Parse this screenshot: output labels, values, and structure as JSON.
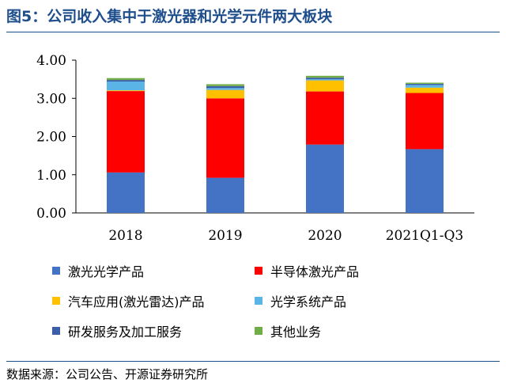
{
  "figure": {
    "title": "图5：公司收入集中于激光器和光学元件两大板块",
    "source": "数据来源：公司公告、开源证券研究所"
  },
  "chart_data": {
    "type": "bar",
    "stacked": true,
    "categories": [
      "2018",
      "2019",
      "2020",
      "2021Q1-Q3"
    ],
    "ylim": [
      0,
      4
    ],
    "yticks": [
      "0.00",
      "1.00",
      "2.00",
      "3.00",
      "4.00"
    ],
    "grid": false,
    "legend_position": "bottom",
    "series": [
      {
        "name": "激光光学产品",
        "color": "#4472c4",
        "values": [
          1.06,
          0.92,
          1.79,
          1.67
        ]
      },
      {
        "name": "半导体激光产品",
        "color": "#ff0000",
        "values": [
          2.13,
          2.08,
          1.39,
          1.47
        ]
      },
      {
        "name": "汽车应用(激光雷达)产品",
        "color": "#ffc000",
        "values": [
          0.02,
          0.22,
          0.29,
          0.14
        ]
      },
      {
        "name": "光学系统产品",
        "color": "#5ab4e5",
        "values": [
          0.23,
          0.05,
          0.03,
          0.07
        ]
      },
      {
        "name": "研发服务及加工服务",
        "color": "#3a5fa8",
        "values": [
          0.04,
          0.05,
          0.04,
          0.03
        ]
      },
      {
        "name": "其他业务",
        "color": "#70ad47",
        "values": [
          0.05,
          0.05,
          0.05,
          0.03
        ]
      }
    ]
  }
}
